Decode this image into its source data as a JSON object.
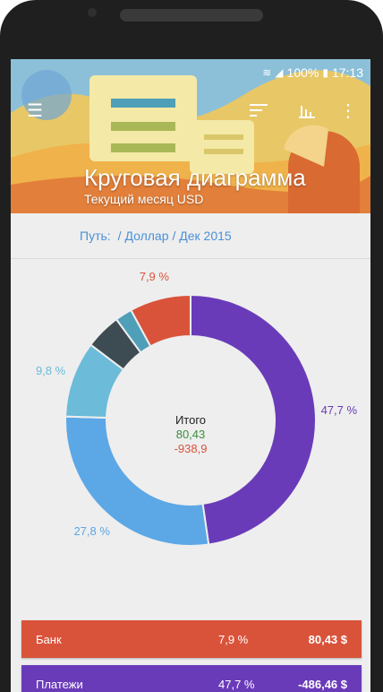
{
  "status": {
    "battery": "100%",
    "time": "17:13"
  },
  "header": {
    "title": "Круговая диаграмма",
    "subtitle": "Текущий месяц USD"
  },
  "breadcrumb": {
    "label": "Путь:",
    "items": [
      "/ Доллар",
      "/ Дек 2015"
    ]
  },
  "colors": {
    "purple": "#6a3bb9",
    "blue": "#5ca7e6",
    "lightblue": "#6bbbd9",
    "dark": "#3d4b52",
    "teal": "#4f9fb8",
    "red": "#d9533b",
    "income": "#3a8f3a",
    "expense": "#d9533b"
  },
  "chart_data": {
    "type": "pie",
    "title": "",
    "center": {
      "label": "Итого",
      "income": "80,43",
      "expense": "-938,9"
    },
    "slices": [
      {
        "value": 47.7,
        "label": "47,7 %",
        "color": "#6a3bb9"
      },
      {
        "value": 27.8,
        "label": "27,8 %",
        "color": "#5ca7e6"
      },
      {
        "value": 9.8,
        "label": "9,8 %",
        "color": "#6bbbd9"
      },
      {
        "value": 4.6,
        "label": "",
        "color": "#3d4b52"
      },
      {
        "value": 2.2,
        "label": "",
        "color": "#4f9fb8"
      },
      {
        "value": 7.9,
        "label": "7,9 %",
        "color": "#d9533b"
      }
    ]
  },
  "rows": [
    {
      "name": "Банк",
      "pct": "7,9 %",
      "amount": "80,43 $",
      "color": "#d9533b"
    },
    {
      "name": "Платежи",
      "pct": "47,7 %",
      "amount": "-486,46 $",
      "color": "#6a3bb9"
    }
  ]
}
